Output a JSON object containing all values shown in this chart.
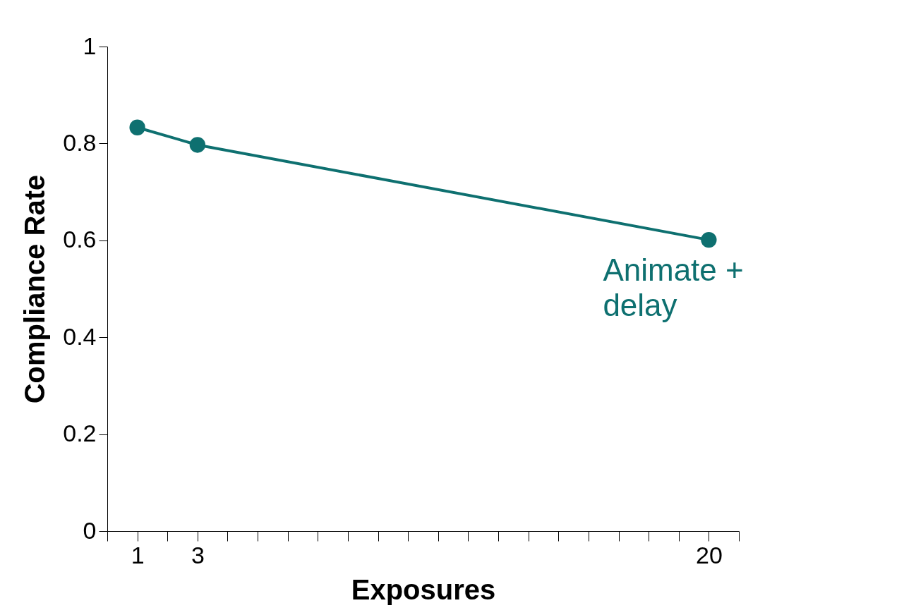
{
  "chart_data": {
    "type": "line",
    "xlabel": "Exposures",
    "ylabel": "Compliance Rate",
    "x": [
      1,
      3,
      20
    ],
    "series": [
      {
        "color": "#0e7070",
        "values": [
          0.833,
          0.797,
          0.601
        ]
      }
    ],
    "xlim": [
      0,
      21
    ],
    "xticks": [
      {
        "value": 0,
        "label": null
      },
      1,
      {
        "value": 2,
        "label": null
      },
      3,
      {
        "value": 4,
        "label": null
      },
      {
        "value": 5,
        "label": null
      },
      {
        "value": 6,
        "label": null
      },
      {
        "value": 7,
        "label": null
      },
      {
        "value": 8,
        "label": null
      },
      {
        "value": 9,
        "label": null
      },
      {
        "value": 10,
        "label": null
      },
      {
        "value": 11,
        "label": null
      },
      {
        "value": 12,
        "label": null
      },
      {
        "value": 13,
        "label": null
      },
      {
        "value": 14,
        "label": null
      },
      {
        "value": 15,
        "label": null
      },
      {
        "value": 16,
        "label": null
      },
      {
        "value": 17,
        "label": null
      },
      {
        "value": 18,
        "label": null
      },
      {
        "value": 19,
        "label": null
      },
      20,
      {
        "value": 21,
        "label": null
      }
    ],
    "ylim": [
      0,
      1
    ],
    "yticks": [
      0,
      0.2,
      0.4,
      0.6,
      0.8,
      1
    ],
    "annotations": [
      {
        "text": "Animate +\ndelay",
        "x": 20,
        "y": 0.6
      }
    ],
    "marker": "circle"
  }
}
